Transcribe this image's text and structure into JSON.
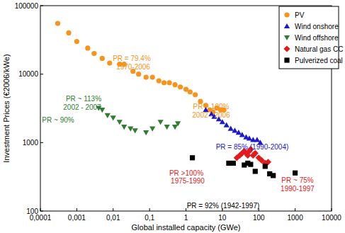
{
  "chart_data": {
    "type": "scatter",
    "x_label": "Global installed capacity (GWe)",
    "y_label": "Investment Prices (€2006/kWe)",
    "log": true,
    "grid": false,
    "legend": "upper right",
    "xlim": [
      0.0001,
      10000
    ],
    "ylim": [
      100,
      100000
    ],
    "xticks": [
      {
        "value": 0.0001,
        "label": "0,0001"
      },
      {
        "value": 0.001,
        "label": "0,001"
      },
      {
        "value": 0.01,
        "label": "0,01"
      },
      {
        "value": 0.1,
        "label": "0,1"
      },
      1,
      10,
      100,
      1000,
      10000
    ],
    "yticks": [
      100,
      1000,
      10000,
      100000
    ],
    "series": [
      {
        "name": "PV",
        "color": "#f7941d",
        "marker": "circle",
        "x": [
          0.0003,
          0.0006,
          0.001,
          0.002,
          0.003,
          0.005,
          0.008,
          0.015,
          0.02,
          0.035,
          0.05,
          0.08,
          0.12,
          0.18,
          0.25,
          0.35,
          0.5,
          0.7,
          1.0,
          1.3,
          1.8,
          2.5,
          3.5,
          4.5,
          5.5,
          7,
          9,
          11
        ],
        "values": [
          55000,
          40000,
          30000,
          24000,
          20000,
          17000,
          14500,
          14000,
          14000,
          11000,
          10000,
          9000,
          9000,
          8000,
          7500,
          7500,
          7000,
          6500,
          6000,
          5500,
          5000,
          4000,
          3500,
          3000,
          2800,
          3200,
          3000,
          3000
        ]
      },
      {
        "name": "Wind onshore",
        "color": "#1a1ac8",
        "marker": "triangle-up",
        "x": [
          3.5,
          5,
          6,
          8,
          10,
          13,
          17,
          22,
          28,
          35,
          45,
          55,
          70,
          90,
          110
        ],
        "values": [
          3000,
          2600,
          2400,
          2200,
          2000,
          1800,
          1600,
          1500,
          1400,
          1300,
          1200,
          1150,
          1100,
          1100,
          1000
        ]
      },
      {
        "name": "Wind offshore",
        "color": "#2e7d32",
        "marker": "triangle-down",
        "x": [
          0.004,
          0.005,
          0.007,
          0.01,
          0.015,
          0.02,
          0.03,
          0.04,
          0.08,
          0.12,
          0.2,
          0.3,
          0.5,
          0.6
        ],
        "values": [
          3200,
          3000,
          2500,
          2300,
          2000,
          1700,
          1600,
          1500,
          1400,
          1600,
          2000,
          1700,
          1700,
          1900
        ]
      },
      {
        "name": "Natural gas CC",
        "color": "#e31a1c",
        "marker": "diamond",
        "x": [
          25,
          30,
          35,
          40,
          45,
          50,
          55,
          60,
          70,
          80,
          100,
          120,
          150,
          180
        ],
        "values": [
          600,
          650,
          700,
          750,
          700,
          650,
          750,
          800,
          650,
          700,
          600,
          550,
          500,
          520
        ]
      },
      {
        "name": "Pulverized coal",
        "color": "#000000",
        "marker": "square",
        "x": [
          1.5,
          15,
          20,
          40,
          50,
          60,
          80,
          150,
          200,
          250,
          1000
        ],
        "values": [
          600,
          500,
          500,
          470,
          500,
          480,
          380,
          450,
          350,
          330,
          360
        ]
      }
    ],
    "annotations": [
      "PR = 79.4%",
      "1970-2006",
      "PR ~ 100%",
      "2002 - 2006",
      "PR ~ 113%",
      "2002 - 2007",
      "PR ~ 90%",
      "PR = 85% (1990-2004)",
      "PR >100%",
      "1975-1990",
      "PR ~ 75%",
      "1990-1997",
      "PR = 92% (1942-1997)"
    ]
  }
}
